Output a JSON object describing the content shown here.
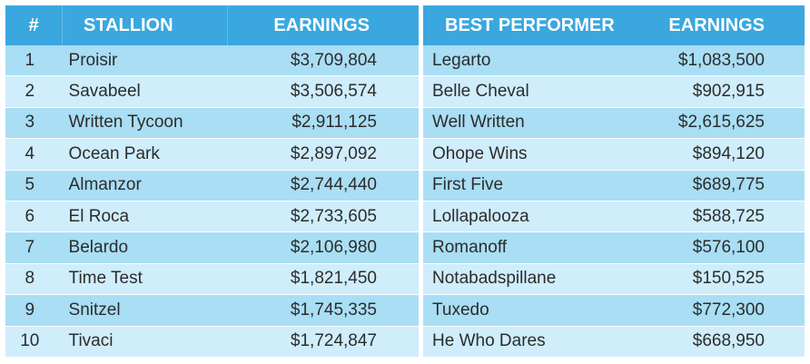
{
  "left_table": {
    "headers": {
      "num": "#",
      "stallion": "STALLION",
      "earnings": "EARNINGS"
    },
    "rows": [
      {
        "num": "1",
        "stallion": "Proisir",
        "earnings": "$3,709,804"
      },
      {
        "num": "2",
        "stallion": "Savabeel",
        "earnings": "$3,506,574"
      },
      {
        "num": "3",
        "stallion": "Written Tycoon",
        "earnings": "$2,911,125"
      },
      {
        "num": "4",
        "stallion": "Ocean Park",
        "earnings": "$2,897,092"
      },
      {
        "num": "5",
        "stallion": "Almanzor",
        "earnings": "$2,744,440"
      },
      {
        "num": "6",
        "stallion": "El Roca",
        "earnings": "$2,733,605"
      },
      {
        "num": "7",
        "stallion": "Belardo",
        "earnings": "$2,106,980"
      },
      {
        "num": "8",
        "stallion": "Time Test",
        "earnings": "$1,821,450"
      },
      {
        "num": "9",
        "stallion": "Snitzel",
        "earnings": "$1,745,335"
      },
      {
        "num": "10",
        "stallion": "Tivaci",
        "earnings": "$1,724,847"
      }
    ]
  },
  "right_table": {
    "headers": {
      "best": "BEST PERFORMER",
      "earnings": "EARNINGS"
    },
    "rows": [
      {
        "best": "Legarto",
        "earnings": "$1,083,500"
      },
      {
        "best": "Belle Cheval",
        "earnings": "$902,915"
      },
      {
        "best": "Well Written",
        "earnings": "$2,615,625"
      },
      {
        "best": "Ohope Wins",
        "earnings": "$894,120"
      },
      {
        "best": "First Five",
        "earnings": "$689,775"
      },
      {
        "best": "Lollapalooza",
        "earnings": "$588,725"
      },
      {
        "best": "Romanoff",
        "earnings": "$576,100"
      },
      {
        "best": "Notabadspillane",
        "earnings": "$150,525"
      },
      {
        "best": "Tuxedo",
        "earnings": "$772,300"
      },
      {
        "best": "He Who Dares",
        "earnings": "$668,950"
      }
    ]
  },
  "colors": {
    "header_bg": "#3aa7df",
    "row_odd": "#a9def4",
    "row_even": "#cfedfb"
  }
}
